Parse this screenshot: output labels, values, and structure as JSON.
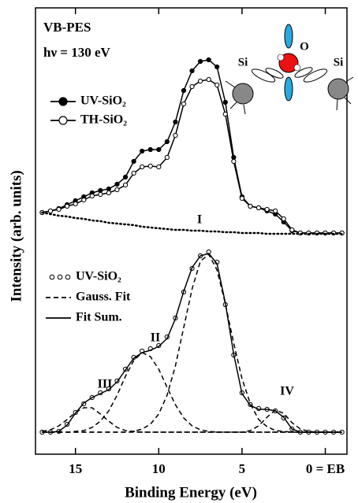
{
  "chart_data": {
    "type": "line",
    "title": "VB-PES",
    "subtitle": "hν  = 130 eV",
    "x_label": "Binding Energy (eV)",
    "y_label": "Intensity (arb. units)",
    "annotations": [
      "I",
      "II",
      "III",
      "IV",
      "Si",
      "O",
      "Si"
    ],
    "x": [
      17,
      16.5,
      16,
      15.5,
      15,
      14.5,
      14,
      13.5,
      13,
      12.5,
      12,
      11.5,
      11,
      10.5,
      10,
      9.5,
      9,
      8.5,
      8,
      7.5,
      7,
      6.5,
      6,
      5.5,
      5,
      4.5,
      4,
      3.5,
      3,
      2.5,
      2,
      1.5,
      1,
      0.5,
      0,
      -0.5,
      -1
    ],
    "xlim": [
      17.4,
      -1.3
    ],
    "xticks": [
      15,
      10,
      5,
      {
        "value": 0,
        "label": "0 = EB"
      }
    ],
    "ylim": [
      0,
      567
    ],
    "series": [
      {
        "name": "UV-SiO₂",
        "color": "#000000",
        "style": "filled-circle",
        "values": [
          307,
          309,
          312,
          317,
          322,
          327,
          332,
          335,
          337,
          343,
          352,
          372,
          385,
          387,
          387,
          397,
          422,
          462,
          487,
          499,
          501,
          492,
          447,
          377,
          327,
          315,
          313,
          309,
          305,
          295,
          284,
          281,
          281,
          281,
          281,
          281,
          281
        ]
      },
      {
        "name": "TH-SiO₂",
        "color": "#000000",
        "style": "open-circle",
        "values": [
          307,
          309,
          311,
          315,
          318,
          323,
          328,
          330,
          332,
          336,
          342,
          357,
          365,
          366,
          365,
          377,
          405,
          445,
          467,
          474,
          476,
          469,
          432,
          372,
          325,
          315,
          313,
          311,
          309,
          299,
          285,
          281,
          281,
          281,
          281,
          281,
          281
        ]
      },
      {
        "color": "#000000",
        "style": "dotted",
        "values": [
          307,
          305,
          303,
          302,
          300,
          299,
          297,
          296,
          294,
          293,
          292,
          291,
          289,
          288,
          287,
          286,
          285,
          285,
          284,
          284,
          283,
          283,
          282,
          282,
          281,
          281,
          281,
          280,
          280,
          280,
          280,
          280,
          280,
          280,
          280,
          280,
          280
        ]
      },
      {
        "name": "UV-SiO₂",
        "color": "#000000",
        "style": "open-circle-only",
        "values": [
          28,
          28,
          29,
          38,
          53,
          64,
          72,
          78,
          83,
          93,
          108,
          123,
          131,
          134,
          138,
          149,
          173,
          206,
          236,
          252,
          257,
          244,
          190,
          126,
          78,
          63,
          58,
          57,
          55,
          46,
          32,
          28,
          28,
          28,
          28,
          28,
          28
        ]
      },
      {
        "name": "Gauss. Fit",
        "color": "#000000",
        "style": "dashed",
        "values": [
          28,
          28,
          28,
          28,
          28,
          28,
          28,
          28,
          28,
          28,
          28,
          29,
          32,
          38,
          51,
          75,
          112,
          161,
          210,
          245,
          254,
          234,
          191,
          141,
          96,
          64,
          44,
          35,
          30,
          29,
          28,
          28,
          28,
          28,
          28,
          28,
          28
        ]
      },
      {
        "color": "#000000",
        "style": "dashed",
        "values": [
          28,
          28,
          28,
          28,
          29,
          30,
          34,
          42,
          55,
          75,
          99,
          119,
          129,
          124,
          108,
          85,
          63,
          46,
          36,
          31,
          29,
          28,
          28,
          28,
          28,
          28,
          28,
          28,
          28,
          28,
          28,
          28,
          28,
          28,
          28,
          28,
          28
        ]
      },
      {
        "color": "#000000",
        "style": "dashed",
        "values": [
          29,
          31,
          36,
          44,
          53,
          59,
          59,
          51,
          42,
          34,
          30,
          29,
          28,
          28,
          28,
          28,
          28,
          28,
          28,
          28,
          28,
          28,
          28,
          28,
          28,
          28,
          28,
          28,
          28,
          28,
          28,
          28,
          28,
          28,
          28,
          28,
          28
        ]
      },
      {
        "color": "#000000",
        "style": "dashed",
        "values": [
          28,
          28,
          28,
          28,
          28,
          28,
          28,
          28,
          28,
          28,
          28,
          28,
          28,
          28,
          28,
          28,
          28,
          28,
          28,
          28,
          28,
          28,
          28,
          28,
          28,
          30,
          36,
          47,
          56,
          52,
          40,
          32,
          29,
          28,
          28,
          28,
          28
        ]
      },
      {
        "name": "Fit Sum.",
        "color": "#000000",
        "style": "solid",
        "values": [
          28,
          28,
          29,
          37,
          52,
          65,
          72,
          77,
          82,
          92,
          107,
          122,
          129,
          132,
          137,
          147,
          172,
          207,
          237,
          252,
          255,
          242,
          192,
          127,
          77,
          62,
          57,
          57,
          55,
          47,
          32,
          28,
          28,
          28,
          28,
          28,
          28
        ]
      }
    ]
  }
}
